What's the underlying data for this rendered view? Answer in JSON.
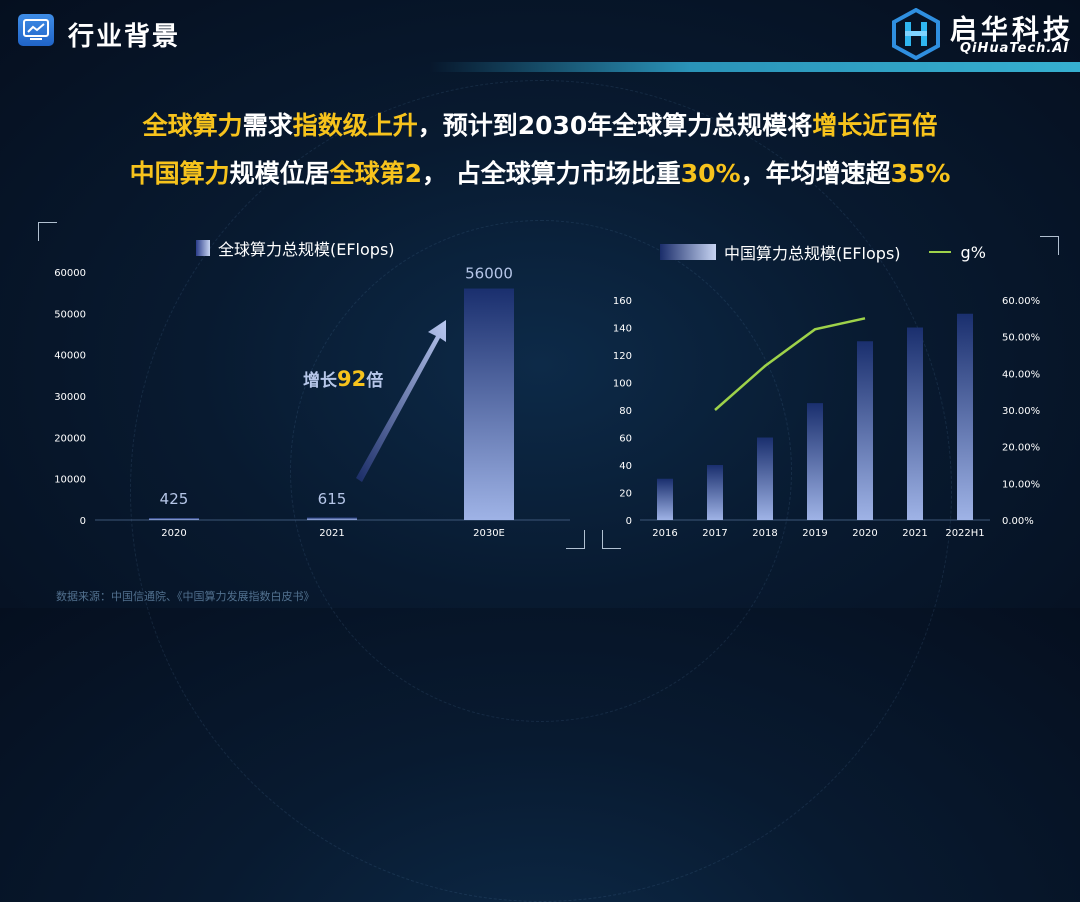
{
  "header": {
    "title": "行业背景",
    "logo_cn": "启华科技",
    "logo_en": "QiHuaTech.AI"
  },
  "headline": {
    "line1": [
      {
        "text": "全球算力",
        "hl": true
      },
      {
        "text": "需求",
        "hl": false
      },
      {
        "text": "指数级上升",
        "hl": true
      },
      {
        "text": "，预计到2030年全球算力总规模将",
        "hl": false
      },
      {
        "text": "增长近百倍",
        "hl": true
      }
    ],
    "line2": [
      {
        "text": "中国算力",
        "hl": true
      },
      {
        "text": "规模位居",
        "hl": false
      },
      {
        "text": "全球第2",
        "hl": true
      },
      {
        "text": "， 占全球算力市场比重",
        "hl": false
      },
      {
        "text": "30%",
        "hl": true
      },
      {
        "text": "，年均增速超",
        "hl": false
      },
      {
        "text": "35%",
        "hl": true
      }
    ]
  },
  "growth_label": {
    "prefix": "增长",
    "value": "92",
    "suffix": "倍"
  },
  "source": "数据来源：中国信通院、《中国算力发展指数白皮书》",
  "colors": {
    "accent": "#f7c31c",
    "line": "#9ed24a",
    "bar_top": "#1a2f6e",
    "bar_bottom": "#9fb3e6"
  },
  "chart_data": [
    {
      "type": "bar",
      "legend": "全球算力总规模(EFlops)",
      "categories": [
        "2020",
        "2021",
        "2030E"
      ],
      "values": [
        425,
        615,
        56000
      ],
      "data_labels": [
        "425",
        "615",
        "56000"
      ],
      "ylim": [
        0,
        60000
      ],
      "yticks": [
        "0",
        "10000",
        "20000",
        "30000",
        "40000",
        "50000",
        "60000"
      ]
    },
    {
      "type": "bar+line",
      "categories": [
        "2016",
        "2017",
        "2018",
        "2019",
        "2020",
        "2021",
        "2022H1"
      ],
      "series": [
        {
          "name": "中国算力总规模(EFlops)",
          "type": "bar",
          "values": [
            30,
            40,
            60,
            85,
            130,
            140,
            150
          ]
        },
        {
          "name": "g%",
          "type": "line",
          "axis": "right",
          "values": [
            null,
            0.3,
            0.42,
            0.52,
            0.55,
            null,
            null
          ]
        }
      ],
      "ylim_left": [
        0,
        160
      ],
      "yticks_left": [
        "0",
        "20",
        "40",
        "60",
        "80",
        "100",
        "120",
        "140",
        "160"
      ],
      "ylim_right": [
        0,
        0.6
      ],
      "yticks_right": [
        "0.00%",
        "10.00%",
        "20.00%",
        "30.00%",
        "40.00%",
        "50.00%",
        "60.00%"
      ]
    }
  ]
}
